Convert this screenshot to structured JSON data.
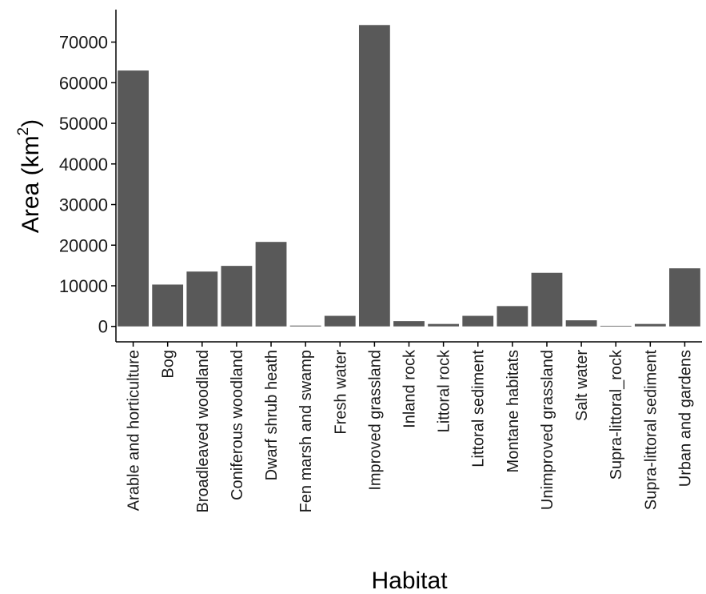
{
  "chart_data": {
    "type": "bar",
    "xlabel": "Habitat",
    "ylabel": "Area (km",
    "ylabel_sup": "2",
    "ylabel_suffix": ")",
    "ylim": [
      -3800,
      78000
    ],
    "yticks": [
      0,
      10000,
      20000,
      30000,
      40000,
      50000,
      60000,
      70000
    ],
    "grid": false,
    "legend": "none",
    "bar_color": "#595959",
    "categories": [
      "Arable and horticulture",
      "Bog",
      "Broadleaved woodland",
      "Coniferous woodland",
      "Dwarf shrub heath",
      "Fen marsh and swamp",
      "Fresh water",
      "Improved grassland",
      "Inland rock",
      "Littoral rock",
      "Littoral sediment",
      "Montane habitats",
      "Unimproved grassland",
      "Salt water",
      "Supra-littoral_rock",
      "Supra-littoral sediment",
      "Urban and gardens"
    ],
    "values": [
      63000,
      10300,
      13500,
      14900,
      20800,
      200,
      2600,
      74200,
      1300,
      600,
      2600,
      5000,
      13200,
      1500,
      150,
      600,
      14300
    ]
  }
}
